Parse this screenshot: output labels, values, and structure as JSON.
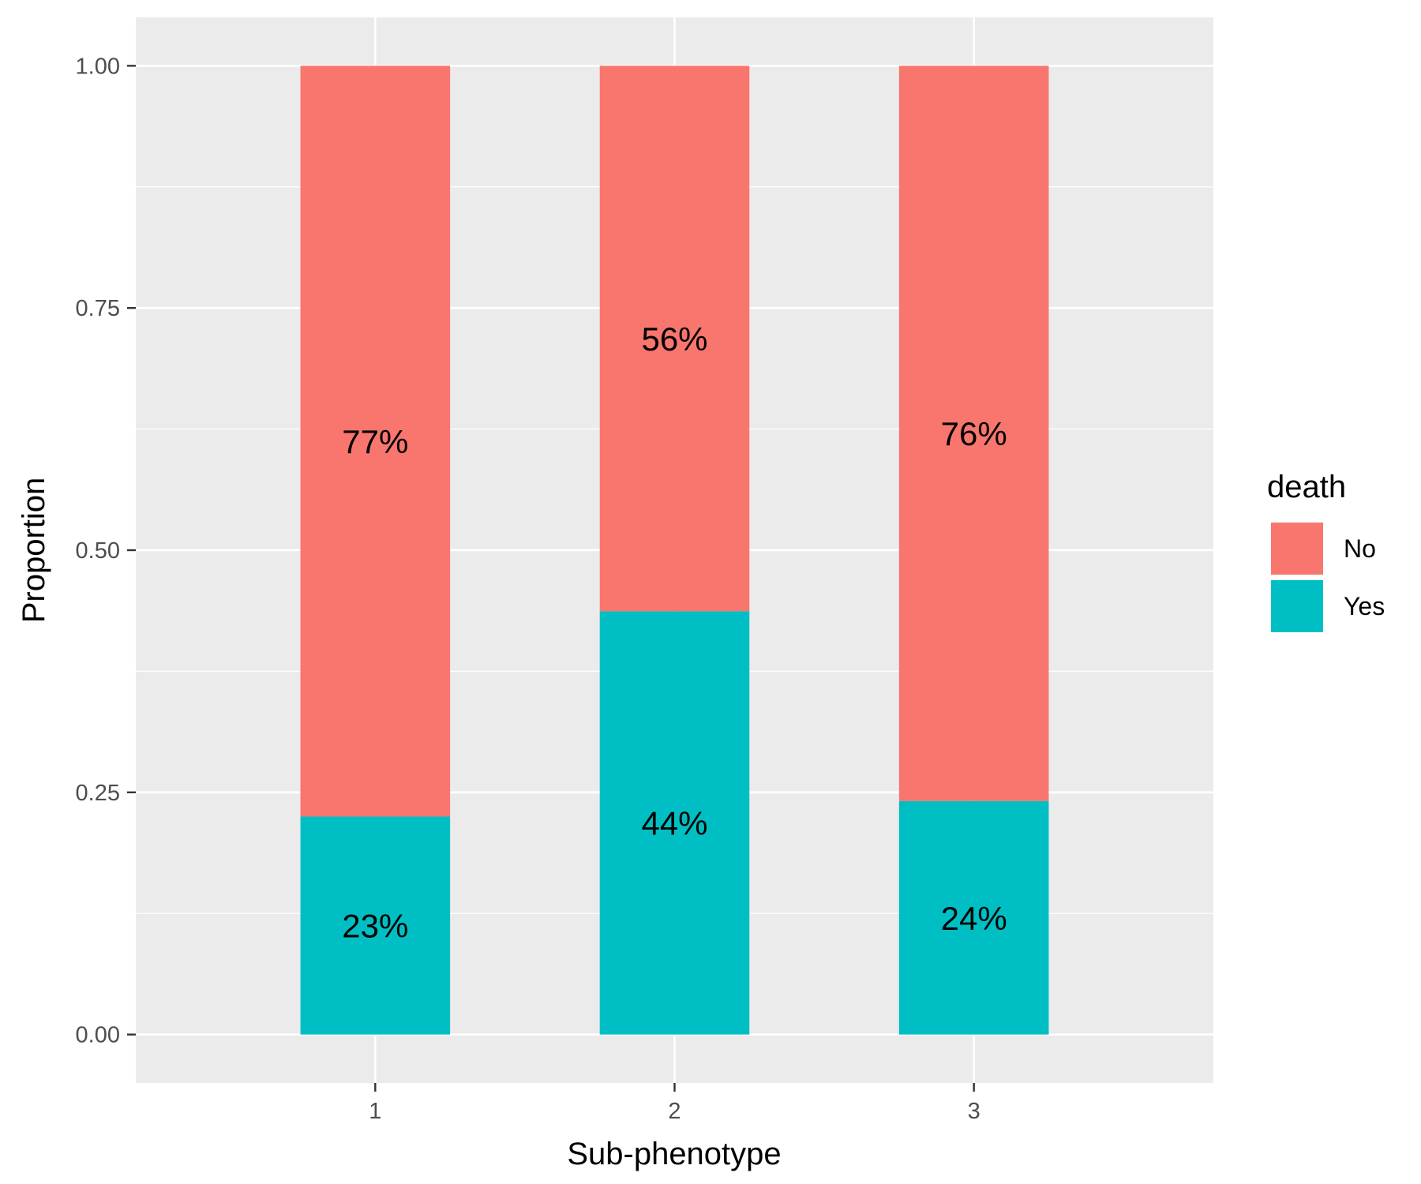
{
  "chart_data": {
    "type": "bar",
    "stacked": true,
    "categories": [
      "1",
      "2",
      "3"
    ],
    "series": [
      {
        "name": "No",
        "values": [
          0.775,
          0.563,
          0.759
        ],
        "labels": [
          "77%",
          "56%",
          "76%"
        ]
      },
      {
        "name": "Yes",
        "values": [
          0.225,
          0.437,
          0.241
        ],
        "labels": [
          "23%",
          "44%",
          "24%"
        ]
      }
    ],
    "xlabel": "Sub-phenotype",
    "ylabel": "Proportion",
    "ylim": [
      -0.05,
      1.05
    ],
    "yticks": [
      0,
      0.25,
      0.5,
      0.75,
      1
    ],
    "ytick_labels": [
      "0.00",
      "0.25",
      "0.50",
      "0.75",
      "1.00"
    ],
    "grid": true,
    "legend": {
      "title": "death",
      "position": "right"
    },
    "colors": {
      "No": "#F8766D",
      "Yes": "#00BFC4",
      "panel": "#EBEBEB",
      "grid": "#FFFFFF"
    }
  }
}
